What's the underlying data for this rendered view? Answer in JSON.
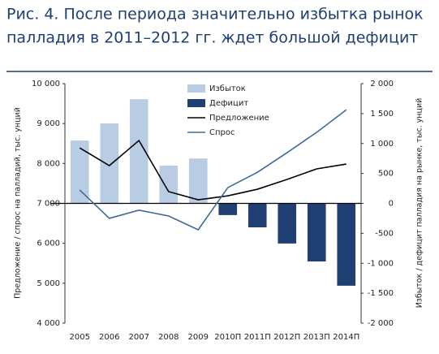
{
  "chart_data": {
    "type": "combo",
    "title_lines": [
      "Рис. 4. После периода значительно избытка рынок",
      "палладия в 2011–2012 гг. ждет большой дефицит"
    ],
    "ylabel": "Предложение / спрос на палладий, тыс. унций",
    "y2label": "Избыток / дефицит палладия на рынке, тыс. унций",
    "categories": [
      "2005",
      "2006",
      "2007",
      "2008",
      "2009",
      "2010П",
      "2011П",
      "2012П",
      "2013П",
      "2014П"
    ],
    "ylim": [
      4000,
      10000
    ],
    "yticks": [
      {
        "value": 10000,
        "label": "10 000"
      },
      {
        "value": 9000,
        "label": "9 000"
      },
      {
        "value": 8000,
        "label": "8 000"
      },
      {
        "value": 7000,
        "label": "7 000"
      },
      {
        "value": 6000,
        "label": "6 000"
      },
      {
        "value": 5000,
        "label": "5 000"
      },
      {
        "value": 4000,
        "label": "4 000"
      }
    ],
    "y2lim": [
      -2000,
      2000
    ],
    "y2ticks": [
      {
        "value": 2000,
        "label": "2 000"
      },
      {
        "value": 1500,
        "label": "1 500"
      },
      {
        "value": 1000,
        "label": "1 000"
      },
      500,
      0,
      -500,
      {
        "value": -1000,
        "label": "-1 000"
      },
      {
        "value": -1500,
        "label": "-1 500"
      },
      {
        "value": -2000,
        "label": "-2 000"
      }
    ],
    "series": [
      {
        "name": "Избыток",
        "type": "bar",
        "axis": "y2",
        "color": "#b8cde4",
        "values": [
          1050,
          1335,
          1740,
          630,
          750,
          null,
          null,
          null,
          null,
          null
        ]
      },
      {
        "name": "Дефицит",
        "type": "bar",
        "axis": "y2",
        "color": "#1f3f73",
        "values": [
          null,
          null,
          null,
          null,
          null,
          -195,
          -400,
          -670,
          -970,
          -1375
        ]
      },
      {
        "name": "Предложение",
        "type": "line",
        "color": "#000000",
        "values": [
          8390,
          7945,
          8575,
          7295,
          7090,
          7190,
          7355,
          7600,
          7865,
          7985
        ]
      },
      {
        "name": "Спрос",
        "type": "line",
        "color": "#3e6a9a",
        "values": [
          7335,
          6625,
          6830,
          6685,
          6340,
          7395,
          7780,
          8270,
          8780,
          9345
        ]
      }
    ]
  }
}
